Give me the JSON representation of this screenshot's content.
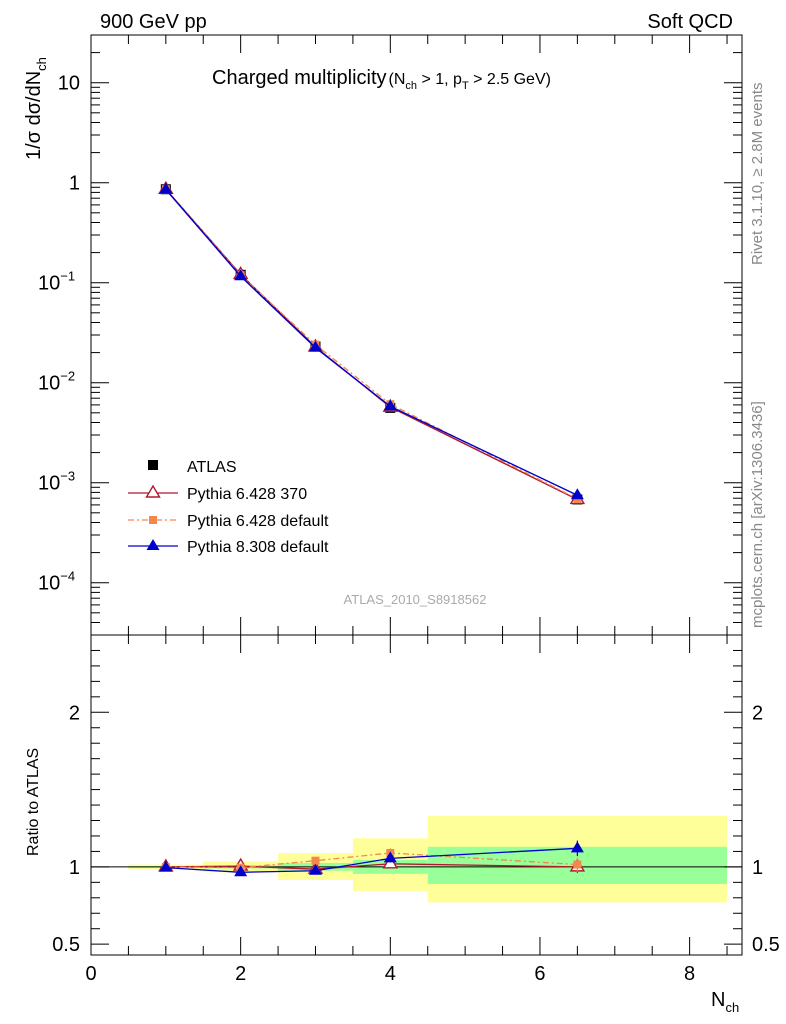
{
  "header": {
    "left": "900 GeV pp",
    "right": "Soft QCD"
  },
  "side_labels": {
    "rivet": "Rivet 3.1.10, ≥ 2.8M events",
    "mcplots": "mcplots.cern.ch [arXiv:1306.3436]"
  },
  "chart_data": [
    {
      "type": "line",
      "panel": "main",
      "title_main": "Charged multiplicity",
      "title_cut_a": "(N",
      "title_cut_a_sub": "ch",
      "title_cut_b": " > 1, p",
      "title_cut_b_sub": "T",
      "title_cut_c": " > 2.5 GeV)",
      "ylabel_main": "1/σ dσ/dN",
      "ylabel_sub": "ch",
      "yscale": "log",
      "ylim": [
        3e-05,
        30
      ],
      "xlim": [
        0,
        8.7
      ],
      "yticks": [
        {
          "v": 10,
          "label": "10",
          "sup": ""
        },
        {
          "v": 1,
          "label": "1",
          "sup": ""
        },
        {
          "v": 0.1,
          "label": "10",
          "sup": "−1"
        },
        {
          "v": 0.01,
          "label": "10",
          "sup": "−2"
        },
        {
          "v": 0.001,
          "label": "10",
          "sup": "−3"
        },
        {
          "v": 0.0001,
          "label": "10",
          "sup": "−4"
        }
      ],
      "watermark": "ATLAS_2010_S8918562",
      "legend_position": "lower-left",
      "series": [
        {
          "name": "ATLAS",
          "color": "#000000",
          "marker": "square",
          "x": [
            1,
            2,
            3,
            4,
            6.5
          ],
          "y": [
            0.86,
            0.12,
            0.023,
            0.0056,
            0.00068
          ]
        },
        {
          "name": "Pythia 6.428 370",
          "color": "#b2182b",
          "marker": "open-triangle",
          "x": [
            1,
            2,
            3,
            4,
            6.5
          ],
          "y": [
            0.86,
            0.121,
            0.0228,
            0.0057,
            0.00068
          ]
        },
        {
          "name": "Pythia 6.428 default",
          "color": "#f4874b",
          "marker": "square-small",
          "dashed": true,
          "x": [
            1,
            2,
            3,
            4,
            6.5
          ],
          "y": [
            0.86,
            0.119,
            0.024,
            0.0061,
            0.00069
          ]
        },
        {
          "name": "Pythia 8.308 default",
          "color": "#0000cc",
          "marker": "triangle",
          "x": [
            1,
            2,
            3,
            4,
            6.5
          ],
          "y": [
            0.855,
            0.116,
            0.0224,
            0.0058,
            0.00075
          ]
        }
      ]
    },
    {
      "type": "line",
      "panel": "ratio",
      "ylabel": "Ratio to ATLAS",
      "xlabel_main": "N",
      "xlabel_sub": "ch",
      "ylim": [
        0.43,
        2.5
      ],
      "xlim": [
        0,
        8.7
      ],
      "yticks": [
        {
          "v": 0.5,
          "label": "0.5"
        },
        {
          "v": 1,
          "label": "1"
        },
        {
          "v": 2,
          "label": "2"
        }
      ],
      "xticks": [
        {
          "v": 0,
          "label": "0"
        },
        {
          "v": 2,
          "label": "2"
        },
        {
          "v": 4,
          "label": "4"
        },
        {
          "v": 6,
          "label": "6"
        },
        {
          "v": 8,
          "label": "8"
        }
      ],
      "bands": [
        {
          "xlo": 0.5,
          "xhi": 1.5,
          "stat_lo": 0.995,
          "stat_hi": 1.005,
          "tot_lo": 0.985,
          "tot_hi": 1.015
        },
        {
          "xlo": 1.5,
          "xhi": 2.5,
          "stat_lo": 0.99,
          "stat_hi": 1.01,
          "tot_lo": 0.965,
          "tot_hi": 1.035
        },
        {
          "xlo": 2.5,
          "xhi": 3.5,
          "stat_lo": 0.975,
          "stat_hi": 1.025,
          "tot_lo": 0.915,
          "tot_hi": 1.09
        },
        {
          "xlo": 3.5,
          "xhi": 4.5,
          "stat_lo": 0.955,
          "stat_hi": 1.045,
          "tot_lo": 0.845,
          "tot_hi": 1.185
        },
        {
          "xlo": 4.5,
          "xhi": 8.5,
          "stat_lo": 0.89,
          "stat_hi": 1.13,
          "tot_lo": 0.77,
          "tot_hi": 1.33
        }
      ],
      "series": [
        {
          "name": "Pythia 6.428 370",
          "color": "#b2182b",
          "marker": "open-triangle",
          "x": [
            1,
            2,
            3,
            4,
            6.5
          ],
          "y": [
            1.0,
            1.005,
            0.985,
            1.02,
            1.0
          ],
          "err": [
            0.005,
            0.01,
            0.012,
            0.02,
            0.04
          ]
        },
        {
          "name": "Pythia 6.428 default",
          "color": "#f4874b",
          "marker": "square-small",
          "dashed": true,
          "x": [
            1,
            2,
            3,
            4,
            6.5
          ],
          "y": [
            1.0,
            0.995,
            1.04,
            1.09,
            1.015
          ],
          "err": [
            0.005,
            0.01,
            0.015,
            0.03,
            0.045
          ]
        },
        {
          "name": "Pythia 8.308 default",
          "color": "#0000cc",
          "marker": "triangle",
          "x": [
            1,
            2,
            3,
            4,
            6.5
          ],
          "y": [
            0.995,
            0.965,
            0.975,
            1.055,
            1.12
          ],
          "err": [
            0.005,
            0.01,
            0.012,
            0.025,
            0.05
          ]
        }
      ]
    }
  ]
}
